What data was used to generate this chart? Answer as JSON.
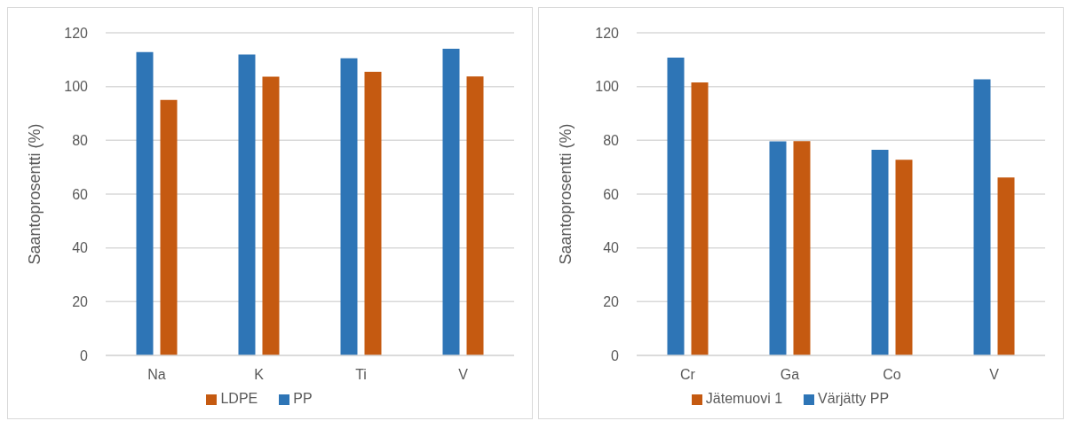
{
  "chart_data": [
    {
      "type": "bar",
      "ylabel": "Saantoprosentti (%)",
      "categories": [
        "Na",
        "K",
        "Ti",
        "V"
      ],
      "series": [
        {
          "name": "PP",
          "color": "#2e75b6",
          "values": [
            112.8,
            111.9,
            110.5,
            114.1
          ]
        },
        {
          "name": "LDPE",
          "color": "#c55a11",
          "values": [
            95.0,
            103.7,
            105.5,
            103.8
          ]
        }
      ],
      "ylim": [
        0,
        120
      ],
      "yticks": [
        0,
        20,
        40,
        60,
        80,
        100,
        120
      ],
      "grid": "y",
      "legend": "bottom"
    },
    {
      "type": "bar",
      "ylabel": "Saantoprosentti (%)",
      "categories": [
        "Cr",
        "Ga",
        "Co",
        "V"
      ],
      "series": [
        {
          "name": "Värjätty PP",
          "color": "#2e75b6",
          "values": [
            110.8,
            79.6,
            76.5,
            102.7
          ]
        },
        {
          "name": "Jätemuovi 1",
          "color": "#c55a11",
          "values": [
            101.5,
            79.7,
            72.8,
            66.2
          ]
        }
      ],
      "ylim": [
        0,
        120
      ],
      "yticks": [
        0,
        20,
        40,
        60,
        80,
        100,
        120
      ],
      "grid": "y",
      "legend": "bottom"
    }
  ]
}
